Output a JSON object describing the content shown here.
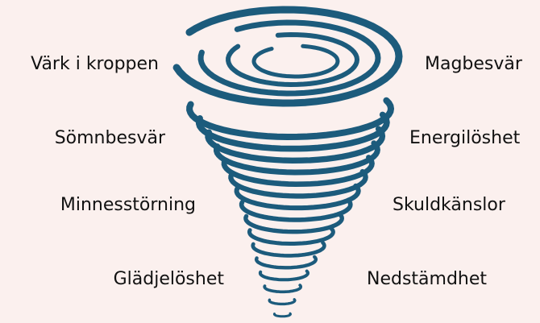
{
  "left_labels": [
    "Värk i kroppen",
    "Sömnbesvär",
    "Minnesstörning",
    "Glädjelöshet"
  ],
  "right_labels": [
    "Magbesvär",
    "Energilöshet",
    "Skuldkänslor",
    "Nedstämdhet"
  ]
}
